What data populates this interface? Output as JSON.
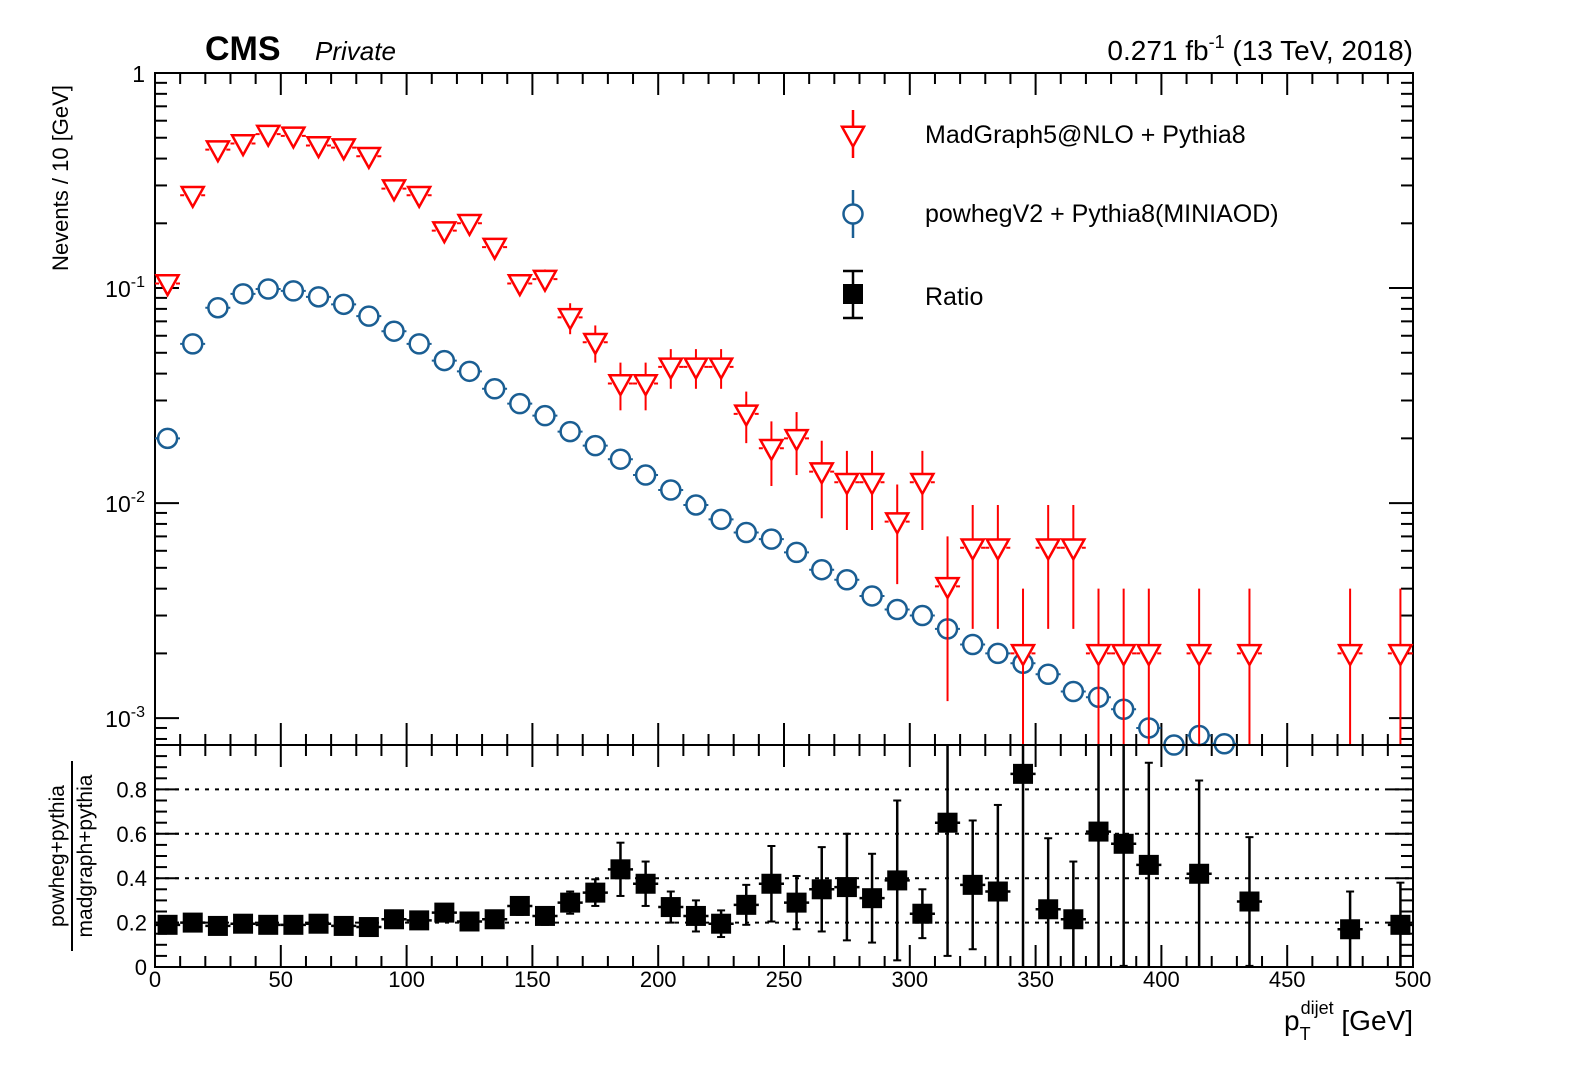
{
  "header": {
    "experiment": "CMS",
    "tag": "Private",
    "lumi_prefix": "0.271 fb",
    "lumi_exp": "-1",
    "lumi_suffix": " (13 TeV, 2018)"
  },
  "colors": {
    "madgraph": "#ff0000",
    "powheg": "#1a5e93",
    "ratio": "#000000"
  },
  "chart_data": [
    {
      "type": "scatter",
      "panel": "upper",
      "ylabel": "Nevents / 10 [GeV]",
      "yscale": "log",
      "ylim": [
        0.00075,
        1
      ],
      "xlim": [
        0,
        500
      ],
      "y_ticks": [
        {
          "base": "10",
          "exp": "-3",
          "value": 0.001
        },
        {
          "base": "10",
          "exp": "-2",
          "value": 0.01
        },
        {
          "base": "10",
          "exp": "-1",
          "value": 0.1
        },
        {
          "base": "1",
          "exp": "",
          "value": 1
        }
      ],
      "legend": [
        {
          "label": "MadGraph5@NLO + Pythia8",
          "marker": "open-triangle-down",
          "color": "#ff0000"
        },
        {
          "label": "powhegV2 + Pythia8(MINIAOD)",
          "marker": "open-circle",
          "color": "#1a5e93"
        },
        {
          "label": "Ratio",
          "marker": "filled-square",
          "color": "#000000"
        }
      ],
      "series": [
        {
          "name": "MadGraph5@NLO + Pythia8",
          "x": [
            5,
            15,
            25,
            35,
            45,
            55,
            65,
            75,
            85,
            95,
            105,
            115,
            125,
            135,
            145,
            155,
            165,
            175,
            185,
            195,
            205,
            215,
            225,
            235,
            245,
            255,
            265,
            275,
            285,
            295,
            305,
            315,
            325,
            335,
            345,
            355,
            365,
            375,
            385,
            395,
            415,
            435,
            475,
            495
          ],
          "y": [
            0.105,
            0.27,
            0.44,
            0.47,
            0.52,
            0.51,
            0.46,
            0.45,
            0.41,
            0.29,
            0.27,
            0.185,
            0.2,
            0.155,
            0.105,
            0.11,
            0.073,
            0.056,
            0.036,
            0.036,
            0.043,
            0.043,
            0.043,
            0.026,
            0.018,
            0.02,
            0.014,
            0.0125,
            0.0125,
            0.0082,
            0.0125,
            0.0041,
            0.0062,
            0.0062,
            0.002,
            0.0062,
            0.0062,
            0.002,
            0.002,
            0.002,
            0.002,
            0.002,
            0.002,
            0.002
          ],
          "err": [
            0.01,
            0.015,
            0.02,
            0.02,
            0.02,
            0.02,
            0.02,
            0.02,
            0.02,
            0.018,
            0.018,
            0.015,
            0.016,
            0.014,
            0.011,
            0.012,
            0.012,
            0.011,
            0.009,
            0.009,
            0.009,
            0.009,
            0.009,
            0.007,
            0.006,
            0.0065,
            0.0055,
            0.005,
            0.005,
            0.004,
            0.005,
            0.0029,
            0.0036,
            0.0036,
            0.002,
            0.0036,
            0.0036,
            0.002,
            0.002,
            0.002,
            0.002,
            0.002,
            0.002,
            0.002
          ]
        },
        {
          "name": "powhegV2 + Pythia8(MINIAOD)",
          "x": [
            5,
            15,
            25,
            35,
            45,
            55,
            65,
            75,
            85,
            95,
            105,
            115,
            125,
            135,
            145,
            155,
            165,
            175,
            185,
            195,
            205,
            215,
            225,
            235,
            245,
            255,
            265,
            275,
            285,
            295,
            305,
            315,
            325,
            335,
            345,
            355,
            365,
            375,
            385,
            395,
            405,
            415,
            425
          ],
          "y": [
            0.02,
            0.055,
            0.081,
            0.094,
            0.099,
            0.097,
            0.091,
            0.084,
            0.074,
            0.063,
            0.055,
            0.046,
            0.041,
            0.034,
            0.029,
            0.0255,
            0.0215,
            0.0185,
            0.016,
            0.0135,
            0.0115,
            0.0098,
            0.0084,
            0.0073,
            0.0068,
            0.0059,
            0.0049,
            0.0044,
            0.0037,
            0.0032,
            0.003,
            0.0026,
            0.0022,
            0.002,
            0.0018,
            0.0016,
            0.00133,
            0.00125,
            0.0011,
            0.0009,
            0.00072,
            0.00083,
            0.00076
          ],
          "err": [
            0.0005,
            0.0008,
            0.001,
            0.001,
            0.001,
            0.001,
            0.001,
            0.001,
            0.0009,
            0.0008,
            0.0008,
            0.0007,
            0.0007,
            0.0006,
            0.0005,
            0.0005,
            0.0004,
            0.0004,
            0.0003,
            0.0003,
            0.0003,
            0.0003,
            0.0002,
            0.0002,
            0.0002,
            0.0002,
            0.0002,
            0.0002,
            0.0001,
            0.0001,
            0.0001,
            0.0001,
            0.0001,
            0.0001,
            0.0001,
            0.0001,
            8e-05,
            8e-05,
            7e-05,
            6e-05,
            5e-05,
            6e-05,
            5e-05
          ]
        }
      ]
    },
    {
      "type": "scatter",
      "panel": "lower",
      "ylabel_numerator": "powheg+pythia",
      "ylabel_denominator": "madgraph+pythia",
      "xlabel_main": "p",
      "xlabel_sub": "T",
      "xlabel_sup": "dijet",
      "xlabel_unit": " [GeV]",
      "ylim": [
        0,
        1
      ],
      "xlim": [
        0,
        500
      ],
      "grid_lines": [
        0.2,
        0.4,
        0.6,
        0.8
      ],
      "x_ticks": [
        "0",
        "50",
        "100",
        "150",
        "200",
        "250",
        "300",
        "350",
        "400",
        "450",
        "500"
      ],
      "y_ticks": [
        "0",
        "0.2",
        "0.4",
        "0.6",
        "0.8"
      ],
      "series": [
        {
          "name": "Ratio",
          "x": [
            5,
            15,
            25,
            35,
            45,
            55,
            65,
            75,
            85,
            95,
            105,
            115,
            125,
            135,
            145,
            155,
            165,
            175,
            185,
            195,
            205,
            215,
            225,
            235,
            245,
            255,
            265,
            275,
            285,
            295,
            305,
            315,
            325,
            335,
            345,
            355,
            365,
            375,
            385,
            395,
            415,
            435,
            475,
            495
          ],
          "y": [
            0.19,
            0.2,
            0.185,
            0.195,
            0.19,
            0.19,
            0.195,
            0.185,
            0.18,
            0.215,
            0.21,
            0.245,
            0.205,
            0.215,
            0.275,
            0.23,
            0.29,
            0.335,
            0.44,
            0.375,
            0.27,
            0.23,
            0.195,
            0.28,
            0.375,
            0.29,
            0.35,
            0.36,
            0.31,
            0.39,
            0.24,
            0.65,
            0.37,
            0.34,
            0.87,
            0.26,
            0.215,
            0.61,
            0.555,
            0.46,
            0.42,
            0.295,
            0.17,
            0.19
          ],
          "err": [
            0.02,
            0.02,
            0.02,
            0.02,
            0.02,
            0.02,
            0.02,
            0.02,
            0.02,
            0.025,
            0.025,
            0.03,
            0.03,
            0.03,
            0.04,
            0.04,
            0.05,
            0.06,
            0.12,
            0.1,
            0.07,
            0.07,
            0.06,
            0.09,
            0.17,
            0.12,
            0.19,
            0.24,
            0.2,
            0.36,
            0.11,
            0.6,
            0.29,
            0.39,
            0.87,
            0.32,
            0.26,
            0.61,
            0.55,
            0.46,
            0.42,
            0.29,
            0.17,
            0.19
          ]
        }
      ]
    }
  ]
}
